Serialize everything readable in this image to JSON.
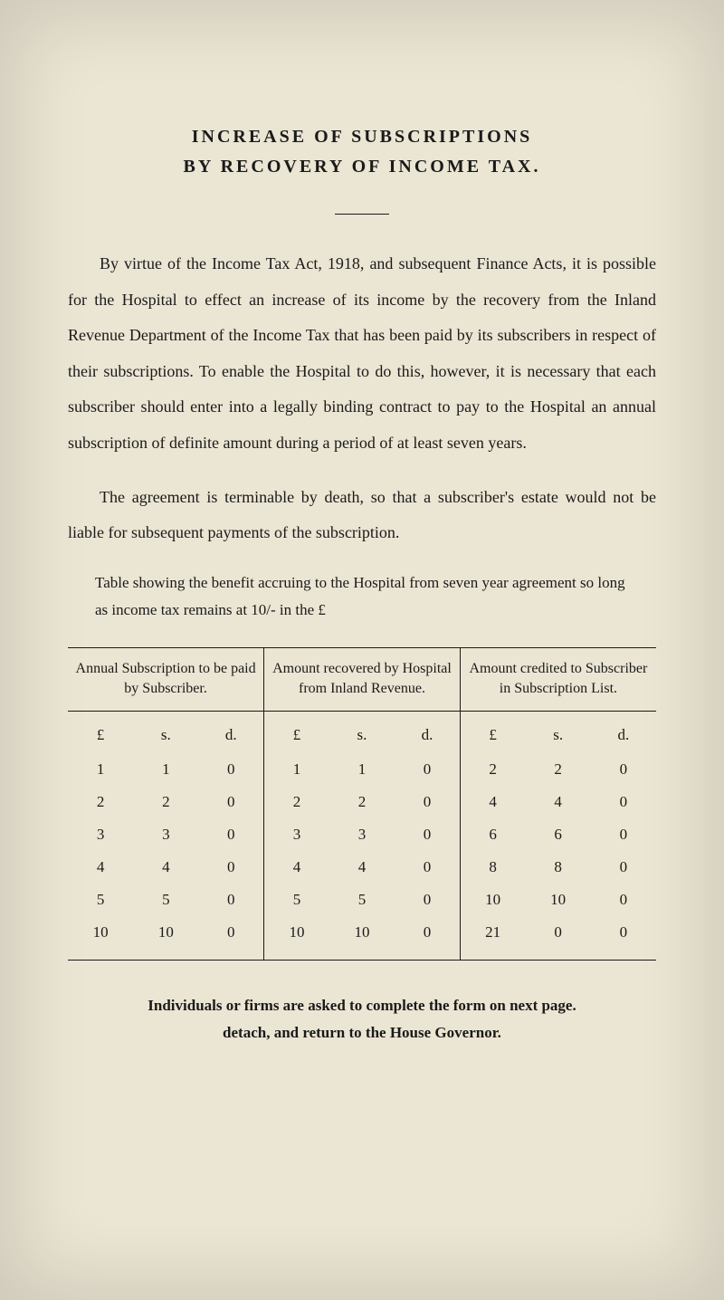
{
  "page": {
    "background_color": "#ebe5d3",
    "text_color": "#1a1a1a"
  },
  "title": {
    "line1": "INCREASE OF SUBSCRIPTIONS",
    "line2": "BY RECOVERY OF INCOME TAX."
  },
  "paragraphs": {
    "p1": "By virtue of the Income Tax Act, 1918, and subsequent Finance Acts, it is possible for the Hospital to effect an increase of its income by the recovery from the Inland Revenue Department of the Income Tax that has been paid by its subscribers in respect of their subscriptions. To enable the Hospital to do this, however, it is necessary that each subscriber should enter into a legally binding contract to pay to the Hospital an annual subscription of definite amount during a period of at least seven years.",
    "p2": "The agreement is terminable by death, so that a subscriber's estate would not be liable for subsequent payments of the subscription."
  },
  "table_caption": "Table showing the benefit accruing to the Hospital from seven year agreement so long as income tax remains at 10/- in the £",
  "table": {
    "headers": {
      "col1": "Annual Subscription to be paid by Subscriber.",
      "col2": "Amount recovered by Hospital from Inland Revenue.",
      "col3": "Amount credited to Subscriber in Subscription List."
    },
    "subheaders": {
      "pounds": "£",
      "shillings": "s.",
      "pence": "d."
    },
    "rows": [
      {
        "c1_l": "1",
        "c1_s": "1",
        "c1_d": "0",
        "c2_l": "1",
        "c2_s": "1",
        "c2_d": "0",
        "c3_l": "2",
        "c3_s": "2",
        "c3_d": "0"
      },
      {
        "c1_l": "2",
        "c1_s": "2",
        "c1_d": "0",
        "c2_l": "2",
        "c2_s": "2",
        "c2_d": "0",
        "c3_l": "4",
        "c3_s": "4",
        "c3_d": "0"
      },
      {
        "c1_l": "3",
        "c1_s": "3",
        "c1_d": "0",
        "c2_l": "3",
        "c2_s": "3",
        "c2_d": "0",
        "c3_l": "6",
        "c3_s": "6",
        "c3_d": "0"
      },
      {
        "c1_l": "4",
        "c1_s": "4",
        "c1_d": "0",
        "c2_l": "4",
        "c2_s": "4",
        "c2_d": "0",
        "c3_l": "8",
        "c3_s": "8",
        "c3_d": "0"
      },
      {
        "c1_l": "5",
        "c1_s": "5",
        "c1_d": "0",
        "c2_l": "5",
        "c2_s": "5",
        "c2_d": "0",
        "c3_l": "10",
        "c3_s": "10",
        "c3_d": "0"
      },
      {
        "c1_l": "10",
        "c1_s": "10",
        "c1_d": "0",
        "c2_l": "10",
        "c2_s": "10",
        "c2_d": "0",
        "c3_l": "21",
        "c3_s": "0",
        "c3_d": "0"
      }
    ]
  },
  "footer": {
    "line1": "Individuals or firms are asked to complete the form on next page.",
    "line2": "detach, and return to the House Governor."
  }
}
